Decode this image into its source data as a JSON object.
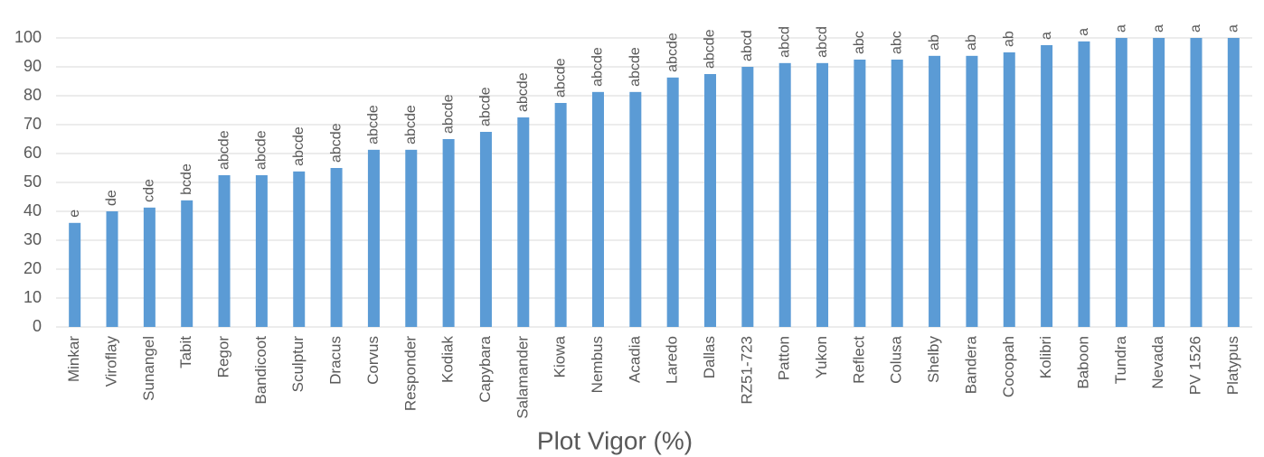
{
  "chart_data": {
    "type": "bar",
    "title": "Plot Vigor (%)",
    "categories": [
      "Minkar",
      "Viroflay",
      "Sunangel",
      "Tabit",
      "Regor",
      "Bandicoot",
      "Sculptur",
      "Dracus",
      "Corvus",
      "Responder",
      "Kodiak",
      "Capybara",
      "Salamander",
      "Kiowa",
      "Nembus",
      "Acadia",
      "Laredo",
      "Dallas",
      "RZ51-723",
      "Patton",
      "Yukon",
      "Reflect",
      "Colusa",
      "Shelby",
      "Bandera",
      "Cocopah",
      "Kolibri",
      "Baboon",
      "Tundra",
      "Nevada",
      "PV 1526",
      "Platypus"
    ],
    "values": [
      36,
      40,
      41.3,
      43.8,
      52.5,
      52.5,
      53.8,
      55,
      61.3,
      61.3,
      65,
      67.5,
      72.5,
      77.5,
      81.3,
      81.3,
      86.3,
      87.5,
      90,
      91.3,
      91.3,
      92.5,
      92.5,
      93.8,
      93.8,
      95,
      97.5,
      98.8,
      100,
      100,
      100,
      100
    ],
    "annotations": [
      "e",
      "de",
      "cde",
      "bcde",
      "abcde",
      "abcde",
      "abcde",
      "abcde",
      "abcde",
      "abcde",
      "abcde",
      "abcde",
      "abcde",
      "abcde",
      "abcde",
      "abcde",
      "abcde",
      "abcde",
      "abcd",
      "abcd",
      "abcd",
      "abc",
      "abc",
      "ab",
      "ab",
      "ab",
      "a",
      "a",
      "a",
      "a",
      "a",
      "a"
    ],
    "color": "#5b9bd5",
    "ylim": [
      0,
      100
    ],
    "yticks": [
      0,
      10,
      20,
      30,
      40,
      50,
      60,
      70,
      80,
      90,
      100
    ],
    "grid": true
  }
}
